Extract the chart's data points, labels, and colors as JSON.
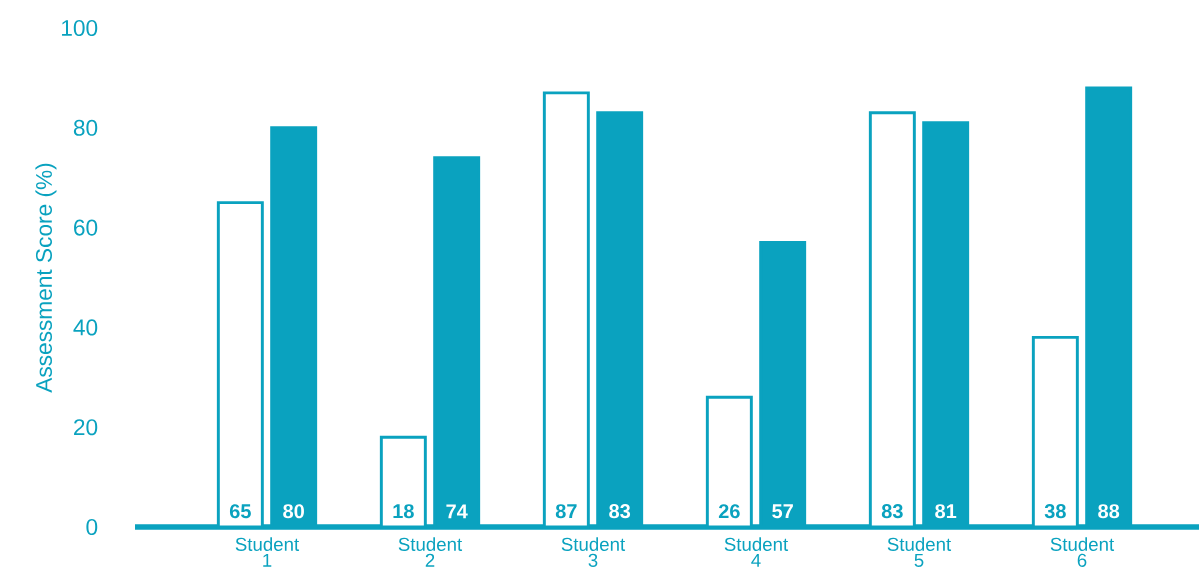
{
  "chart_data": {
    "type": "bar",
    "ylabel": "Assessment Score (%)",
    "categories": [
      "Student 1",
      "Student 2",
      "Student 3",
      "Student 4",
      "Student 5",
      "Student 6"
    ],
    "series": [
      {
        "color": "#ffffff",
        "values": [
          65,
          18,
          87,
          26,
          83,
          38
        ]
      },
      {
        "color": "#0aa2bf",
        "values": [
          80,
          74,
          83,
          57,
          81,
          88
        ]
      }
    ],
    "ylim": [
      0,
      100
    ],
    "yticks": [
      0,
      20,
      40,
      60,
      80,
      100
    ],
    "data_labels": true
  }
}
